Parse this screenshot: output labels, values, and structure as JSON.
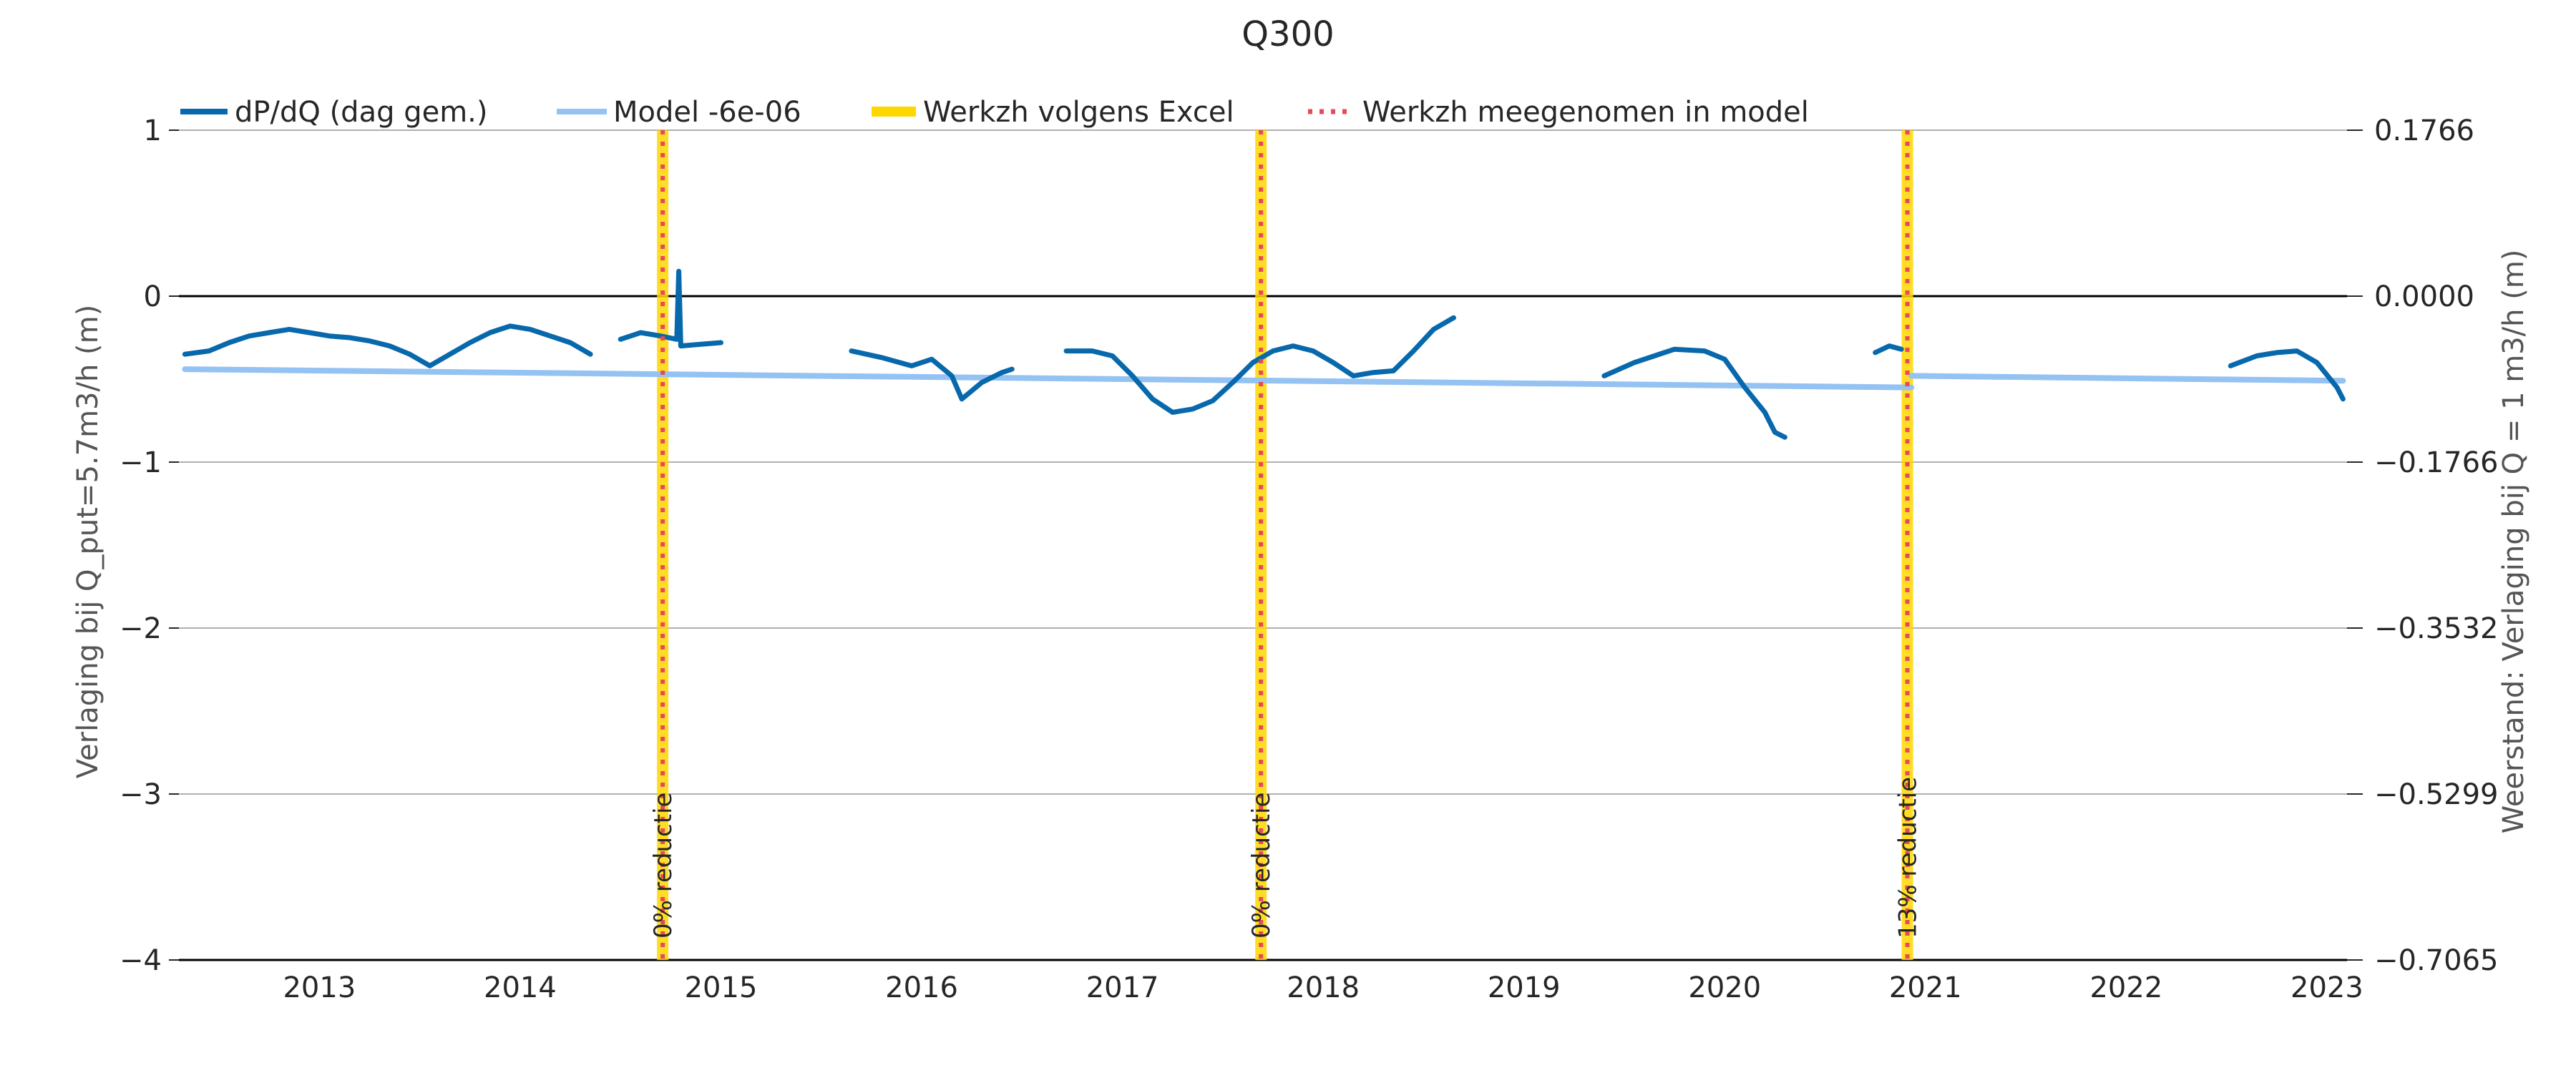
{
  "chart_data": {
    "type": "line",
    "title": "Q300",
    "ylabel": "Verlaging bij Q_put=5.7m3/h (m)",
    "ylabel_right": "Weerstand: Verlaging bij Q = 1 m3/h (m)",
    "xlim": [
      2012.3,
      2023.1
    ],
    "ylim": [
      -4,
      1
    ],
    "ylim_right": [
      -0.7065,
      0.1766
    ],
    "x_tick_labels": [
      "2013",
      "2014",
      "2015",
      "2016",
      "2017",
      "2018",
      "2019",
      "2020",
      "2021",
      "2022",
      "2023"
    ],
    "x_tick_values": [
      2013,
      2014,
      2015,
      2016,
      2017,
      2018,
      2019,
      2020,
      2021,
      2022,
      2023
    ],
    "y_tick_labels": [
      "1",
      "0",
      "−1",
      "−2",
      "−3",
      "−4"
    ],
    "y_tick_values": [
      1,
      0,
      -1,
      -2,
      -3,
      -4
    ],
    "y_right_tick_labels": [
      "0.1766",
      "0.0000",
      "−0.1766",
      "−0.3532",
      "−0.5299",
      "−0.7065"
    ],
    "grid": "horizontal",
    "legend_position": "top",
    "colors": {
      "dpdq": "#0868ac",
      "model": "#94c2f2",
      "excel": "#ffd700",
      "model_marker": "#e8495a",
      "grid": "#b0b0b0",
      "zero_line": "#000000"
    },
    "series": [
      {
        "name": "dP/dQ (dag gem.)",
        "segments": [
          [
            [
              2012.33,
              -0.35
            ],
            [
              2012.45,
              -0.33
            ],
            [
              2012.55,
              -0.28
            ],
            [
              2012.65,
              -0.24
            ],
            [
              2012.75,
              -0.22
            ],
            [
              2012.85,
              -0.2
            ],
            [
              2012.95,
              -0.22
            ],
            [
              2013.05,
              -0.24
            ],
            [
              2013.15,
              -0.25
            ],
            [
              2013.25,
              -0.27
            ],
            [
              2013.35,
              -0.3
            ],
            [
              2013.45,
              -0.35
            ],
            [
              2013.55,
              -0.42
            ],
            [
              2013.65,
              -0.35
            ],
            [
              2013.75,
              -0.28
            ],
            [
              2013.85,
              -0.22
            ],
            [
              2013.95,
              -0.18
            ],
            [
              2014.05,
              -0.2
            ],
            [
              2014.15,
              -0.24
            ],
            [
              2014.25,
              -0.28
            ],
            [
              2014.35,
              -0.35
            ]
          ],
          [
            [
              2014.5,
              -0.26
            ],
            [
              2014.6,
              -0.22
            ],
            [
              2014.7,
              -0.24
            ],
            [
              2014.78,
              -0.26
            ],
            [
              2014.79,
              0.15
            ],
            [
              2014.8,
              -0.3
            ],
            [
              2014.9,
              -0.29
            ],
            [
              2015.0,
              -0.28
            ]
          ],
          [
            [
              2015.65,
              -0.33
            ],
            [
              2015.8,
              -0.37
            ],
            [
              2015.95,
              -0.42
            ],
            [
              2016.05,
              -0.38
            ],
            [
              2016.15,
              -0.48
            ],
            [
              2016.2,
              -0.62
            ],
            [
              2016.3,
              -0.52
            ],
            [
              2016.4,
              -0.46
            ],
            [
              2016.45,
              -0.44
            ]
          ],
          [
            [
              2016.72,
              -0.33
            ],
            [
              2016.85,
              -0.33
            ],
            [
              2016.95,
              -0.36
            ],
            [
              2017.05,
              -0.48
            ],
            [
              2017.15,
              -0.62
            ],
            [
              2017.25,
              -0.7
            ],
            [
              2017.35,
              -0.68
            ],
            [
              2017.45,
              -0.63
            ],
            [
              2017.55,
              -0.52
            ],
            [
              2017.65,
              -0.4
            ],
            [
              2017.75,
              -0.33
            ],
            [
              2017.85,
              -0.3
            ],
            [
              2017.95,
              -0.33
            ],
            [
              2018.05,
              -0.4
            ],
            [
              2018.15,
              -0.48
            ],
            [
              2018.25,
              -0.46
            ],
            [
              2018.35,
              -0.45
            ],
            [
              2018.45,
              -0.33
            ],
            [
              2018.55,
              -0.2
            ],
            [
              2018.65,
              -0.13
            ]
          ],
          [
            [
              2019.4,
              -0.48
            ],
            [
              2019.55,
              -0.4
            ],
            [
              2019.65,
              -0.36
            ],
            [
              2019.75,
              -0.32
            ],
            [
              2019.9,
              -0.33
            ],
            [
              2020.0,
              -0.38
            ],
            [
              2020.1,
              -0.55
            ],
            [
              2020.2,
              -0.7
            ],
            [
              2020.25,
              -0.82
            ],
            [
              2020.3,
              -0.85
            ]
          ],
          [
            [
              2020.75,
              -0.34
            ],
            [
              2020.82,
              -0.3
            ],
            [
              2020.88,
              -0.32
            ]
          ],
          [
            [
              2022.52,
              -0.42
            ],
            [
              2022.65,
              -0.36
            ],
            [
              2022.75,
              -0.34
            ],
            [
              2022.85,
              -0.33
            ],
            [
              2022.95,
              -0.4
            ],
            [
              2023.05,
              -0.55
            ],
            [
              2023.08,
              -0.62
            ]
          ]
        ]
      },
      {
        "name": "Model -6e-06",
        "segments": [
          [
            [
              2012.33,
              -0.44
            ],
            [
              2020.93,
              -0.55
            ]
          ],
          [
            [
              2020.93,
              -0.48
            ],
            [
              2023.08,
              -0.51
            ]
          ]
        ]
      }
    ],
    "interventions": [
      {
        "x": 2014.71,
        "label": "0% reductie"
      },
      {
        "x": 2017.69,
        "label": "0% reductie"
      },
      {
        "x": 2020.91,
        "label": "13% reductie"
      }
    ],
    "legend": [
      {
        "label": "dP/dQ (dag gem.)",
        "style": "solid-dark"
      },
      {
        "label": "Model -6e-06",
        "style": "solid-light"
      },
      {
        "label": "Werkzh volgens Excel",
        "style": "band"
      },
      {
        "label": "Werkzh meegenomen in model",
        "style": "dotted"
      }
    ]
  }
}
